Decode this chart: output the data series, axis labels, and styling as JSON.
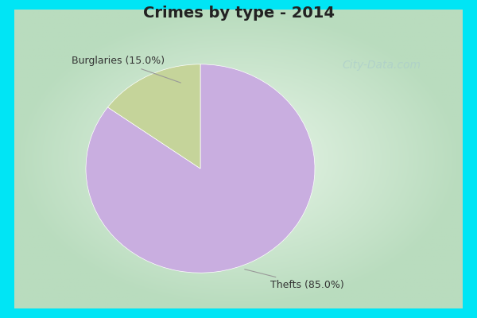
{
  "title": "Crimes by type - 2014",
  "slices": [
    85.0,
    15.0
  ],
  "labels": [
    "Thefts",
    "Burglaries"
  ],
  "colors": [
    "#c9aee0",
    "#c5d49a"
  ],
  "startangle": 90,
  "bg_cyan": "#00e5f5",
  "bg_green_edge": "#b8ddb8",
  "bg_center": "#eaf5ea",
  "annotation_thefts": "Thefts (85.0%)",
  "annotation_burglaries": "Burglaries (15.0%)",
  "watermark": "City-Data.com",
  "title_fontsize": 14,
  "title_color": "#222222",
  "annotation_fontsize": 9,
  "annotation_color": "#333333"
}
